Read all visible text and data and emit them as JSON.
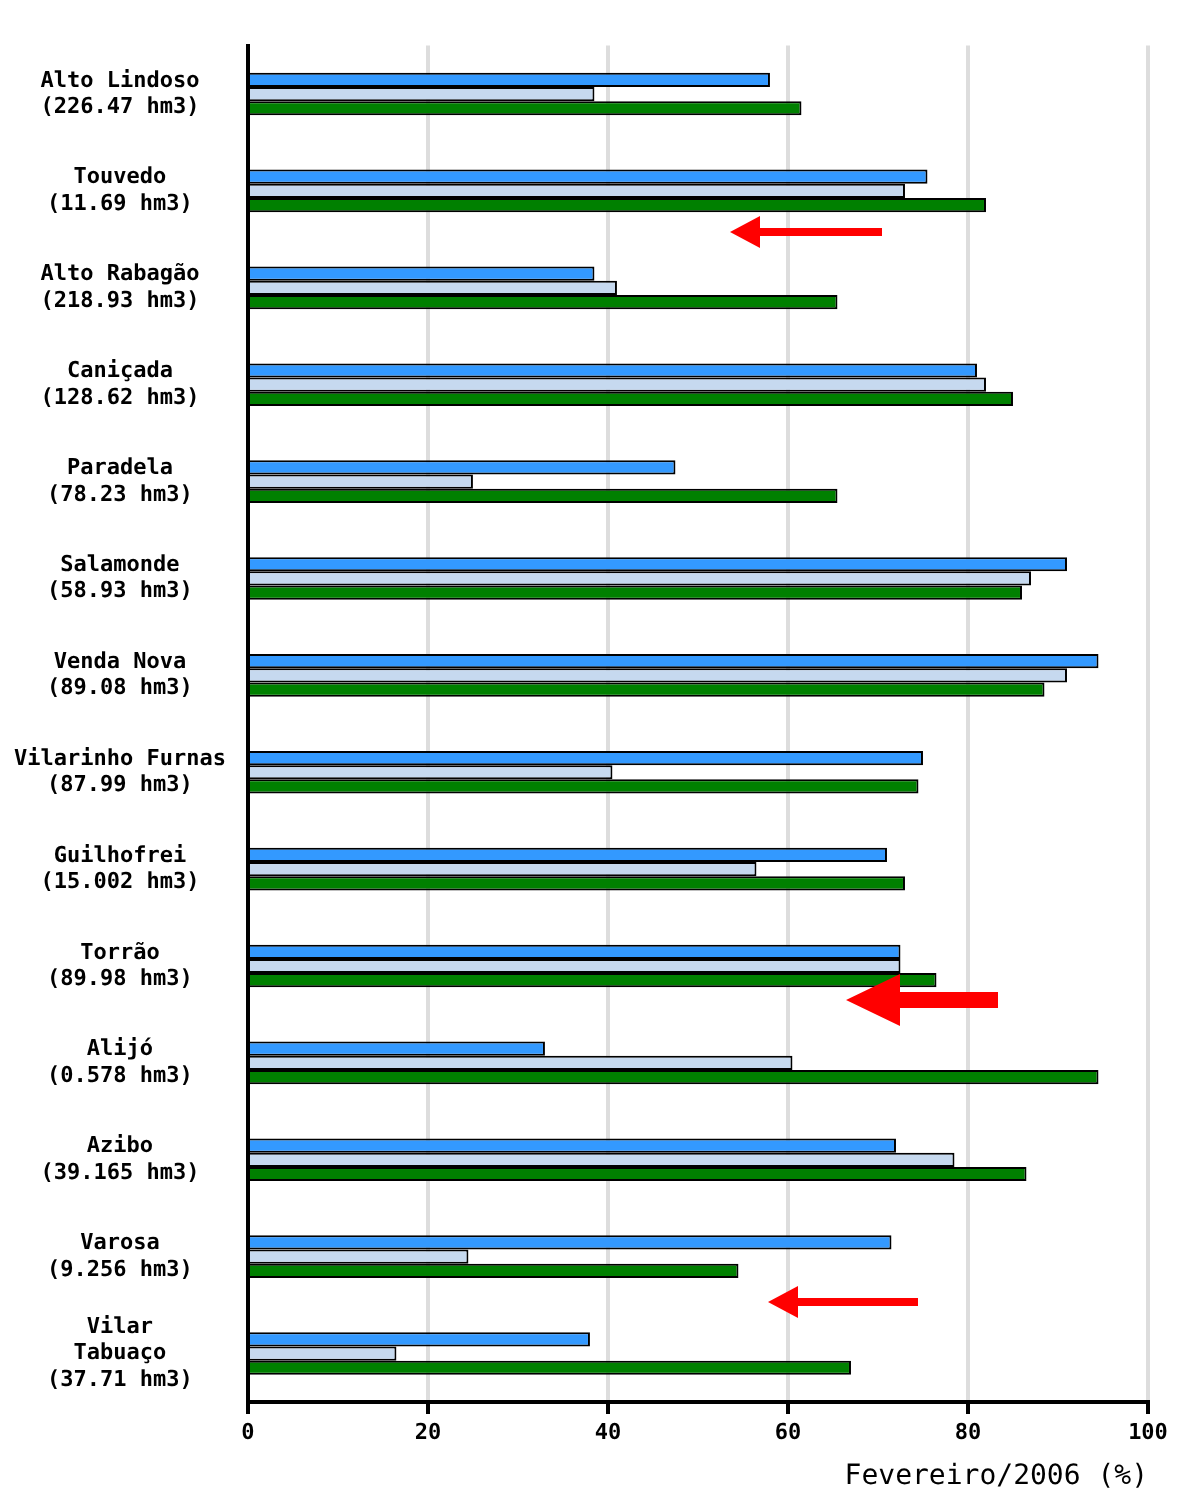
{
  "chart_data": {
    "type": "bar",
    "orientation": "horizontal",
    "xlabel": "Fevereiro/2006 (%)",
    "categories": [
      "Alto Lindoso\n(226.47 hm3)",
      "Touvedo\n(11.69 hm3)",
      "Alto Rabagão\n(218.93 hm3)",
      "Caniçada\n(128.62 hm3)",
      "Paradela\n(78.23 hm3)",
      "Salamonde\n(58.93 hm3)",
      "Venda Nova\n(89.08 hm3)",
      "Vilarinho Furnas\n(87.99 hm3)",
      "Guilhofrei\n(15.002 hm3)",
      "Torrão\n(89.98 hm3)",
      "Alijó\n(0.578 hm3)",
      "Azibo\n(39.165 hm3)",
      "Varosa\n(9.256 hm3)",
      "Vilar\nTabuaço\n(37.71 hm3)"
    ],
    "series": [
      {
        "color": "#3399ff",
        "values": [
          58,
          75.5,
          38.5,
          81,
          47.5,
          91,
          94.5,
          75,
          71,
          72.5,
          33,
          72,
          71.5,
          38
        ]
      },
      {
        "color": "#c6d9ef",
        "values": [
          38.5,
          73,
          41,
          82,
          25,
          87,
          91,
          40.5,
          56.5,
          72.5,
          60.5,
          78.5,
          24.5,
          16.5
        ]
      },
      {
        "color": "#008000",
        "values": [
          61.5,
          82,
          65.5,
          85,
          65.5,
          86,
          88.5,
          74.5,
          73,
          76.5,
          94.5,
          86.5,
          54.5,
          67
        ]
      }
    ],
    "xlim": [
      0,
      100
    ],
    "xticks": [
      0,
      20,
      40,
      60,
      80,
      100
    ],
    "grid": "x",
    "legend": false
  }
}
